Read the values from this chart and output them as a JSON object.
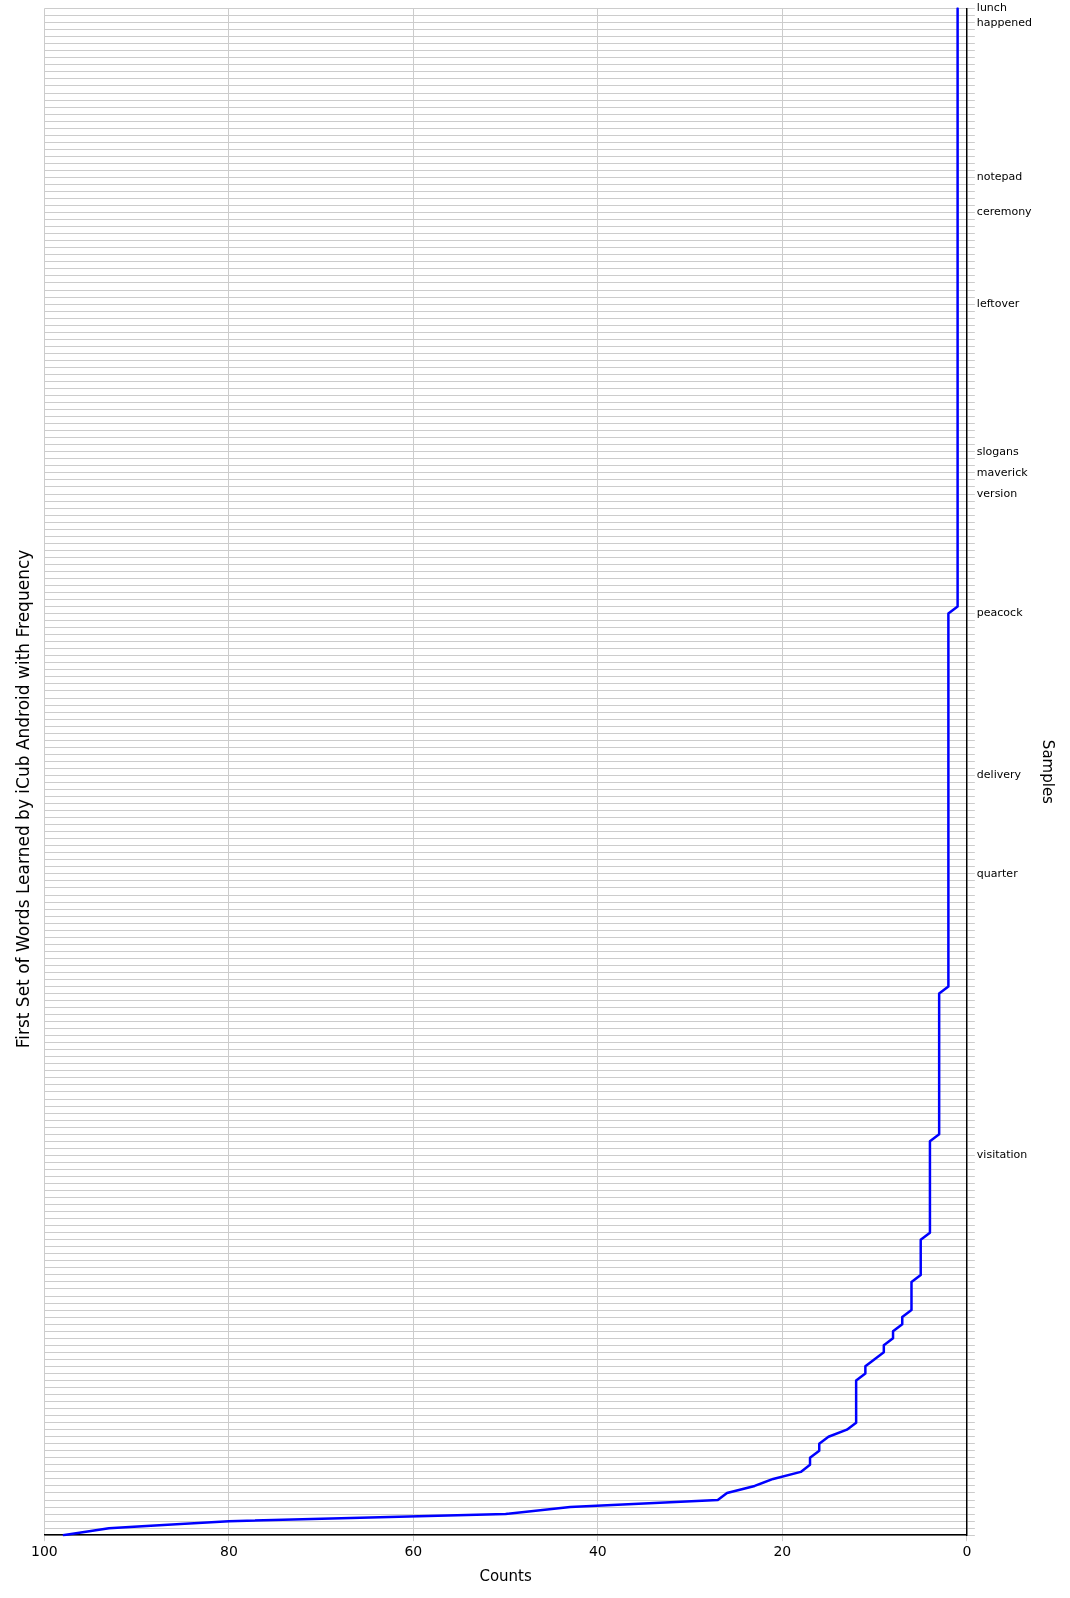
{
  "chart_data": {
    "type": "line",
    "title": "First Set of Words Learned by iCub Android with Frequency",
    "xlabel": "Counts",
    "ylabel": "Samples",
    "orientation": "horizontal",
    "categories": [
      "lunch",
      null,
      "happened",
      null,
      null,
      null,
      null,
      null,
      null,
      null,
      null,
      null,
      null,
      null,
      null,
      null,
      null,
      null,
      null,
      null,
      null,
      null,
      null,
      null,
      "notepad",
      null,
      null,
      null,
      null,
      "ceremony",
      null,
      null,
      null,
      null,
      null,
      null,
      null,
      null,
      null,
      null,
      null,
      null,
      "leftover",
      null,
      null,
      null,
      null,
      null,
      null,
      null,
      null,
      null,
      null,
      null,
      null,
      null,
      null,
      null,
      null,
      null,
      null,
      null,
      null,
      "slogans",
      null,
      null,
      "maverick",
      null,
      null,
      "version",
      null,
      null,
      null,
      null,
      null,
      null,
      null,
      null,
      null,
      null,
      null,
      null,
      null,
      null,
      null,
      null,
      "peacock",
      null,
      null,
      null,
      null,
      null,
      null,
      null,
      null,
      null,
      null,
      null,
      null,
      null,
      null,
      null,
      null,
      null,
      null,
      null,
      null,
      null,
      null,
      "delivery",
      null,
      null,
      null,
      null,
      null,
      null,
      null,
      null,
      null,
      null,
      null,
      null,
      null,
      "quarter",
      null,
      null,
      null,
      null,
      null,
      null,
      null,
      null,
      null,
      null,
      null,
      null,
      null,
      null,
      null,
      null,
      null,
      null,
      null,
      null,
      null,
      null,
      null,
      null,
      null,
      null,
      null,
      null,
      null,
      null,
      null,
      null,
      null,
      null,
      null,
      null,
      null,
      null,
      null,
      "visitation",
      null,
      null,
      null,
      null,
      null,
      null,
      null,
      null,
      null,
      null,
      null,
      null,
      null,
      null,
      null,
      null,
      null,
      null,
      null,
      null,
      null,
      null,
      null,
      null,
      null,
      null,
      null,
      null,
      null,
      null,
      null,
      null,
      null,
      null,
      null,
      null,
      null,
      null,
      null,
      null,
      null,
      null,
      null,
      null,
      null,
      null,
      null,
      null,
      null,
      null,
      null,
      null,
      null,
      null
    ],
    "values": [
      1,
      1,
      1,
      1,
      1,
      1,
      1,
      1,
      1,
      1,
      1,
      1,
      1,
      1,
      1,
      1,
      1,
      1,
      1,
      1,
      1,
      1,
      1,
      1,
      1,
      1,
      1,
      1,
      1,
      1,
      1,
      1,
      1,
      1,
      1,
      1,
      1,
      1,
      1,
      1,
      1,
      1,
      1,
      1,
      1,
      1,
      1,
      1,
      1,
      1,
      1,
      1,
      1,
      1,
      1,
      1,
      1,
      1,
      1,
      1,
      1,
      1,
      1,
      1,
      1,
      1,
      1,
      1,
      1,
      1,
      1,
      1,
      1,
      1,
      1,
      1,
      1,
      1,
      1,
      1,
      1,
      1,
      1,
      1,
      1,
      1,
      2,
      2,
      2,
      2,
      2,
      2,
      2,
      2,
      2,
      2,
      2,
      2,
      2,
      2,
      2,
      2,
      2,
      2,
      2,
      2,
      2,
      2,
      2,
      2,
      2,
      2,
      2,
      2,
      2,
      2,
      2,
      2,
      2,
      2,
      2,
      2,
      2,
      2,
      2,
      2,
      2,
      2,
      2,
      2,
      2,
      2,
      2,
      2,
      2,
      2,
      2,
      2,
      2,
      2,
      3,
      3,
      3,
      3,
      3,
      3,
      3,
      3,
      3,
      3,
      3,
      3,
      3,
      3,
      3,
      3,
      3,
      3,
      3,
      3,
      3,
      4,
      4,
      4,
      4,
      4,
      4,
      4,
      4,
      4,
      4,
      4,
      4,
      4,
      4,
      5,
      5,
      5,
      5,
      5,
      5,
      6,
      6,
      6,
      6,
      6,
      7,
      7,
      8,
      8,
      9,
      9,
      10,
      11,
      11,
      12,
      12,
      12,
      12,
      12,
      12,
      12,
      13,
      15,
      16,
      16,
      17,
      17,
      18,
      21,
      23,
      26,
      27,
      43,
      50,
      80,
      93,
      98
    ],
    "color": "#0000ff",
    "xlim": [
      100,
      0
    ],
    "xticks": [
      0,
      20,
      40,
      60,
      80,
      100
    ],
    "grid": true,
    "legend": false,
    "marker": "none",
    "line_style": "solid"
  }
}
